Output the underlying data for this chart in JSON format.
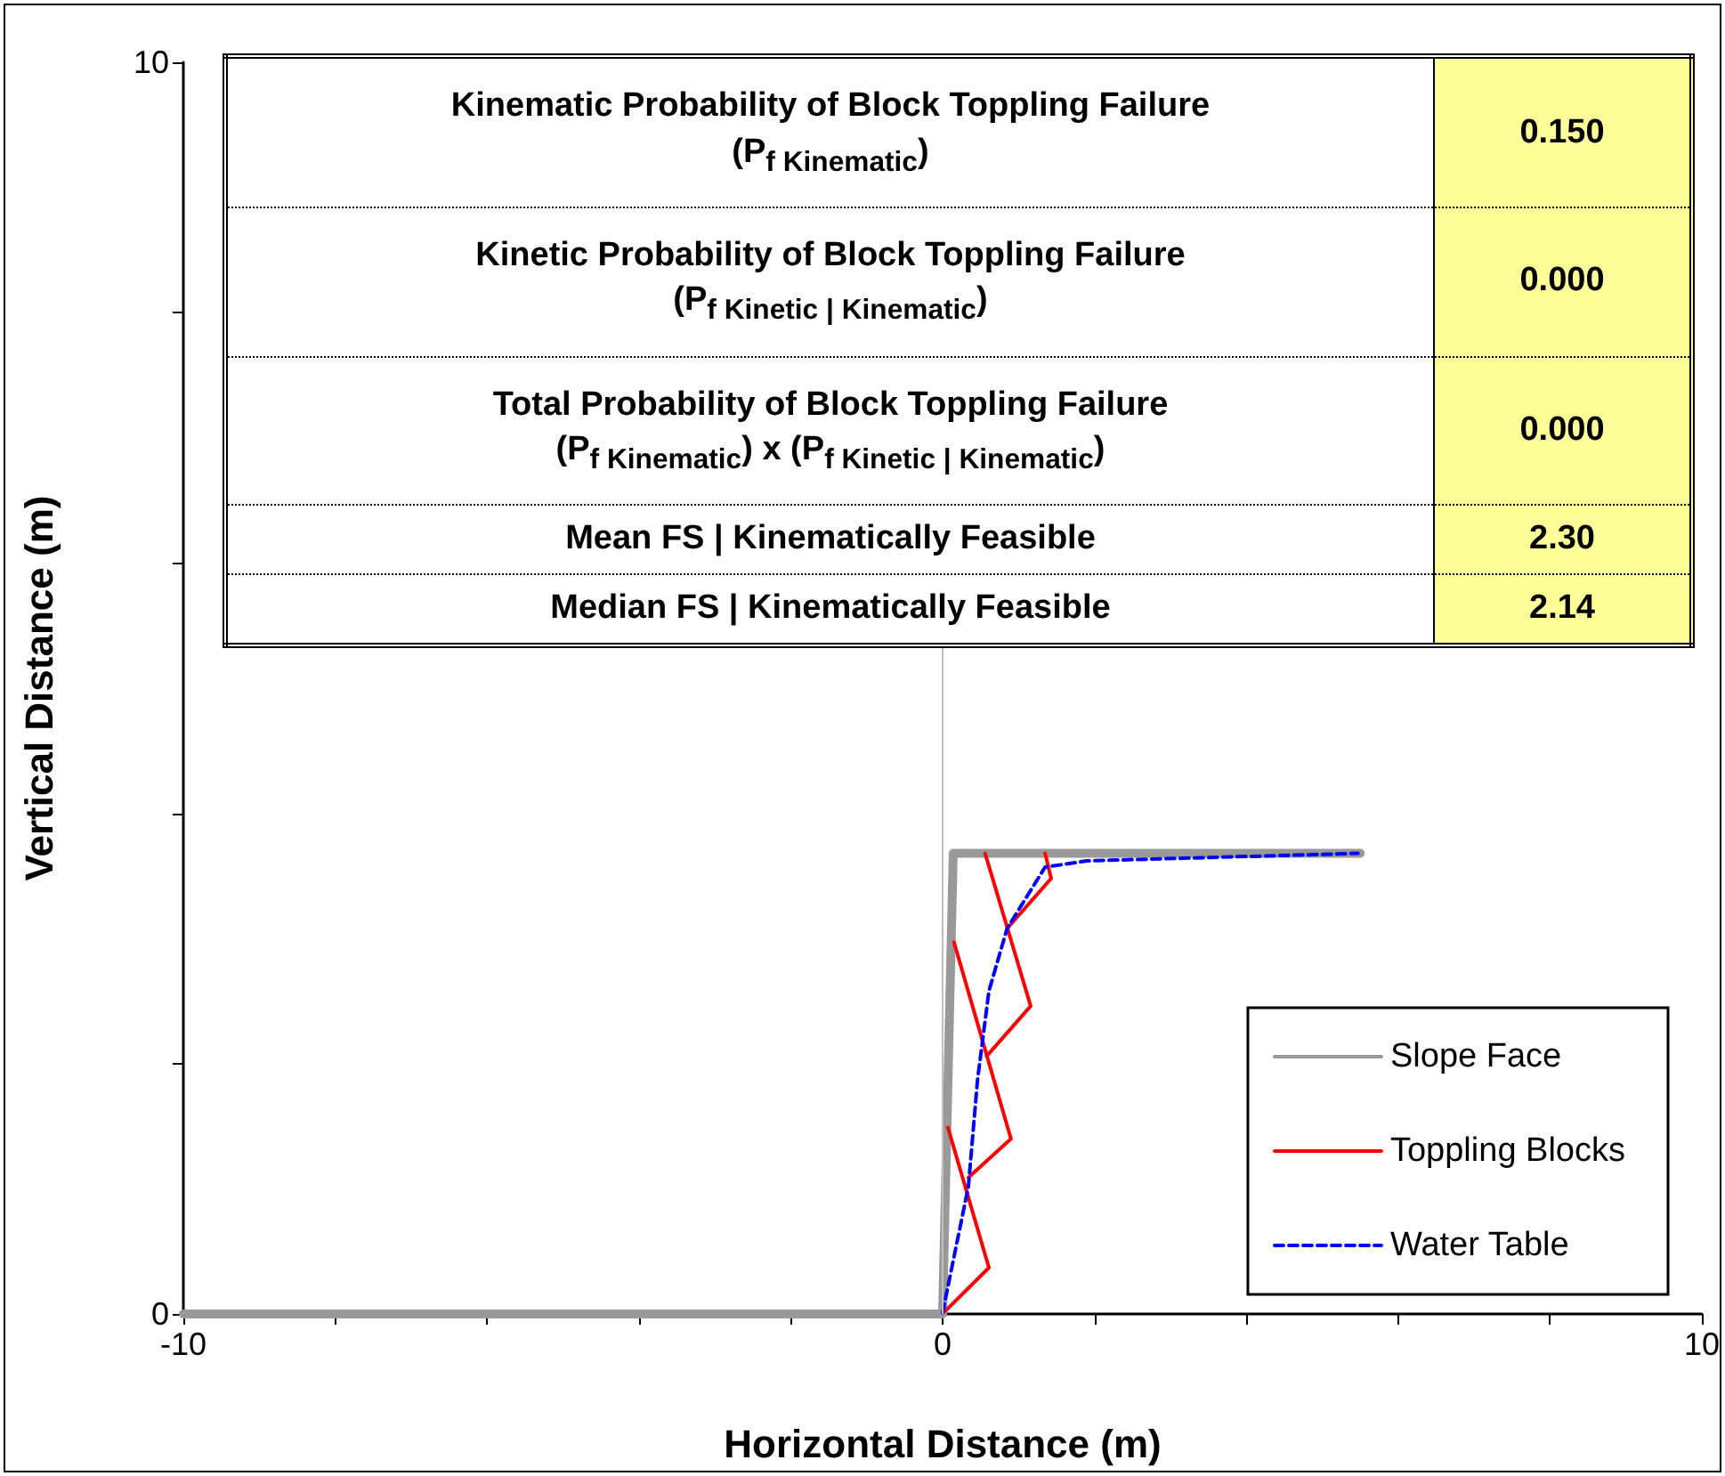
{
  "chart_data": [
    {
      "type": "other",
      "annotations": [
        "Kinematic Probability of  Block Toppling Failure\n(P$_{f Kinematic}$)",
        "0.150",
        "Kinetic Probability of Block Toppling Failure\n(P$_{f Kinetic | Kinematic}$)",
        "0.000",
        "Total Probability of Block Toppling Failure\n(P$_{f Kinematic}$) x (P$_{f Kinetic | Kinematic}$)",
        "0.000",
        "Mean FS | Kinematically Feasible",
        "2.30",
        "Median FS | Kinematically Feasible",
        "2.14"
      ]
    },
    {
      "type": "line",
      "xlabel": "Horizontal Distance (m)",
      "ylabel": "Vertical Distance (m)",
      "xlim": [
        -10,
        10
      ],
      "ylim": [
        0,
        10
      ],
      "xticks": [
        -10,
        {
          "value": -8,
          "label": null
        },
        {
          "value": -6,
          "label": null
        },
        {
          "value": -4,
          "label": null
        },
        {
          "value": -2,
          "label": null
        },
        0,
        {
          "value": 2,
          "label": null
        },
        {
          "value": 4,
          "label": null
        },
        {
          "value": 6,
          "label": null
        },
        {
          "value": 8,
          "label": null
        },
        10
      ],
      "yticks": [
        0,
        {
          "value": 2,
          "label": null
        },
        {
          "value": 4,
          "label": null
        },
        {
          "value": 6,
          "label": null
        },
        {
          "value": 8,
          "label": null
        },
        10
      ],
      "grid": false,
      "legend": "bottom right",
      "marker": "none",
      "series": [
        {
          "name": "Slope Face",
          "color": "#999999",
          "line_style": "solid",
          "x": [
            -10,
            0,
            0.14,
            5.5
          ],
          "values": [
            0,
            0,
            3.68,
            3.68
          ]
        },
        {
          "name": "Toppling Blocks",
          "color": "#ff0000",
          "line_style": "solid",
          "x": [
            0.03,
            0.61,
            0.07,
            null,
            0.34,
            0.9,
            0.15,
            null,
            0.58,
            1.16,
            0.56,
            null,
            0.85,
            1.43,
            1.35
          ],
          "values": [
            0.02,
            0.37,
            1.49,
            null,
            1.09,
            1.4,
            2.97,
            null,
            2.06,
            2.46,
            3.68,
            null,
            3.08,
            3.48,
            3.68
          ]
        },
        {
          "name": "Water Table",
          "color": "#0000ff",
          "line_style": "dashed",
          "x": [
            0,
            0.34,
            0.46,
            0.61,
            0.85,
            1.35,
            1.9,
            5.47
          ],
          "values": [
            0.01,
            1.02,
            1.87,
            2.58,
            3.08,
            3.57,
            3.62,
            3.68
          ]
        }
      ],
      "ref_lines": [
        {
          "axis": "x",
          "value": 0,
          "color": "#bfbfbf"
        }
      ]
    }
  ]
}
